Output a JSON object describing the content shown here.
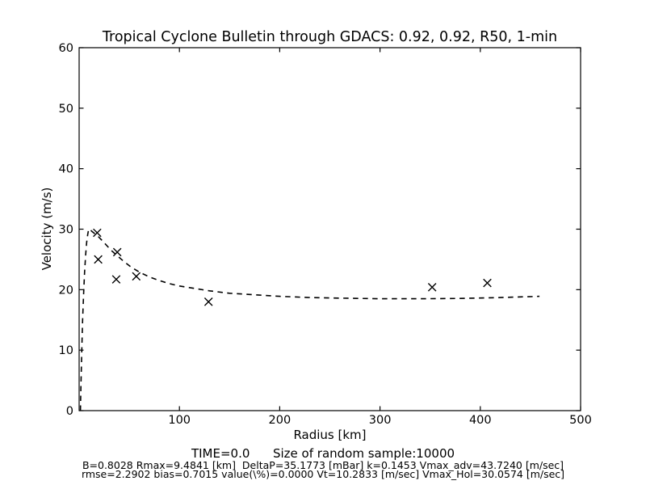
{
  "title": "Tropical Cyclone Bulletin through GDACS: 0.92, 0.92, R50, 1-min",
  "footer": {
    "time_line": "TIME=0.0      Size of random sample:10000",
    "params_line1": "B=0.8028 Rmax=9.4841 [km]  DeltaP=35.1773 [mBar] k=0.1453 Vmax_adv=43.7240 [m/sec]",
    "params_line2": "rmse=2.2902 bias=0.7015 value(\\%)=0.0000 Vt=10.2833 [m/sec] Vmax_Hol=30.0574 [m/sec]"
  },
  "chart_data": {
    "type": "scatter",
    "title": "Tropical Cyclone Bulletin through GDACS: 0.92, 0.92, R50, 1-min",
    "xlabel": "Radius [km]",
    "ylabel": "Velocity (m/s)",
    "xlim": [
      0,
      500
    ],
    "ylim": [
      0,
      60
    ],
    "xticks": [
      100,
      200,
      300,
      400,
      500
    ],
    "yticks": [
      0,
      10,
      20,
      30,
      40,
      50,
      60
    ],
    "grid": false,
    "legend": "none",
    "colors": {
      "line": "#000000",
      "marker": "#000000",
      "background": "#ffffff"
    },
    "series": [
      {
        "name": "observed-bulletin-points",
        "type": "scatter",
        "marker": "x",
        "points": [
          [
            18,
            29.4
          ],
          [
            19,
            25.0
          ],
          [
            38,
            26.2
          ],
          [
            37,
            21.7
          ],
          [
            57,
            22.2
          ],
          [
            129,
            18.0
          ],
          [
            352,
            20.4
          ],
          [
            407,
            21.1
          ]
        ]
      },
      {
        "name": "holland-model-fit",
        "type": "line",
        "linestyle": "dashed",
        "points": [
          [
            1.3,
            0
          ],
          [
            1.8,
            4
          ],
          [
            2.5,
            9
          ],
          [
            3.5,
            15
          ],
          [
            4.5,
            19.5
          ],
          [
            5.5,
            23
          ],
          [
            6.5,
            25.8
          ],
          [
            7.5,
            27.8
          ],
          [
            8.5,
            29.1
          ],
          [
            9.5,
            30.0
          ],
          [
            11,
            29.9
          ],
          [
            13,
            29.6
          ],
          [
            16,
            29.2
          ],
          [
            19,
            28.8
          ],
          [
            23,
            28.1
          ],
          [
            27,
            27.4
          ],
          [
            32,
            26.5
          ],
          [
            38,
            25.6
          ],
          [
            45,
            24.6
          ],
          [
            52,
            23.7
          ],
          [
            60,
            22.9
          ],
          [
            70,
            22.1
          ],
          [
            80,
            21.5
          ],
          [
            90,
            21.0
          ],
          [
            100,
            20.6
          ],
          [
            115,
            20.2
          ],
          [
            130,
            19.8
          ],
          [
            150,
            19.4
          ],
          [
            170,
            19.2
          ],
          [
            200,
            18.9
          ],
          [
            230,
            18.7
          ],
          [
            260,
            18.6
          ],
          [
            300,
            18.5
          ],
          [
            340,
            18.5
          ],
          [
            380,
            18.55
          ],
          [
            420,
            18.7
          ],
          [
            459,
            18.9
          ]
        ]
      }
    ]
  }
}
